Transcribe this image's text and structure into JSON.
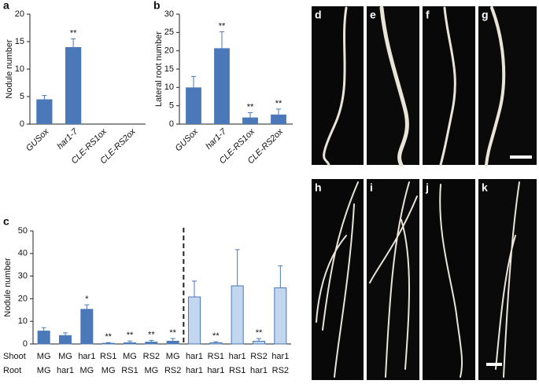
{
  "chart_data": [
    {
      "type": "bar",
      "panel_label": "a",
      "ylabel": "Nodule number",
      "categories": [
        "GUSox",
        "har1-7",
        "CLE-RS1ox",
        "CLE-RS2ox"
      ],
      "values": [
        4.5,
        14,
        0,
        0
      ],
      "errors": [
        0.7,
        1.5,
        null,
        null
      ],
      "annotations": [
        null,
        "**",
        null,
        null
      ],
      "color": "#4a78b8",
      "italic": true,
      "ylim": [
        0,
        20
      ],
      "yticks": [
        0,
        5,
        10,
        15,
        20
      ]
    },
    {
      "type": "bar",
      "panel_label": "b",
      "ylabel": "Lateral root number",
      "categories": [
        "GUSox",
        "har1-7",
        "CLE-RS1ox",
        "CLE-RS2ox"
      ],
      "values": [
        10,
        20.7,
        1.8,
        2.6
      ],
      "errors": [
        3,
        4.5,
        1.3,
        1.5
      ],
      "annotations": [
        null,
        "**",
        "**",
        "**"
      ],
      "color": "#4a78b8",
      "italic": true,
      "ylim": [
        0,
        30
      ],
      "yticks": [
        0,
        5,
        10,
        15,
        20,
        25,
        30
      ]
    },
    {
      "type": "bar",
      "panel_label": "c",
      "ylabel": "Nodule number",
      "row_labels": [
        "Shoot",
        "Root"
      ],
      "shoot": [
        "MG",
        "MG",
        "har1",
        "RS1",
        "MG",
        "RS2",
        "MG",
        "har1",
        "RS1",
        "har1",
        "RS2",
        "har1"
      ],
      "root": [
        "MG",
        "har1",
        "MG",
        "MG",
        "RS1",
        "MG",
        "RS2",
        "har1",
        "har1",
        "RS1",
        "har1",
        "RS2"
      ],
      "values": [
        5.7,
        3.7,
        15.3,
        0.3,
        0.5,
        0.8,
        1.2,
        20.8,
        0.5,
        25.7,
        1.2,
        24.8
      ],
      "errors": [
        1.5,
        1.2,
        2,
        0.3,
        0.8,
        0.8,
        1.2,
        7,
        0.5,
        16,
        1.2,
        9.7
      ],
      "annotations": [
        null,
        null,
        "*",
        "**",
        "**",
        "**",
        "**",
        null,
        "**",
        null,
        "**",
        null
      ],
      "colors": [
        "#4a78b8",
        "#4a78b8",
        "#4a78b8",
        "#4a78b8",
        "#4a78b8",
        "#4a78b8",
        "#4a78b8",
        "#c2d6ef",
        "#c2d6ef",
        "#c2d6ef",
        "#c2d6ef",
        "#c2d6ef"
      ],
      "ylim": [
        0,
        50
      ],
      "yticks": [
        0,
        10,
        20,
        30,
        40,
        50
      ]
    }
  ],
  "photos": {
    "labels": [
      "d",
      "e",
      "f",
      "g",
      "h",
      "i",
      "j",
      "k"
    ]
  }
}
